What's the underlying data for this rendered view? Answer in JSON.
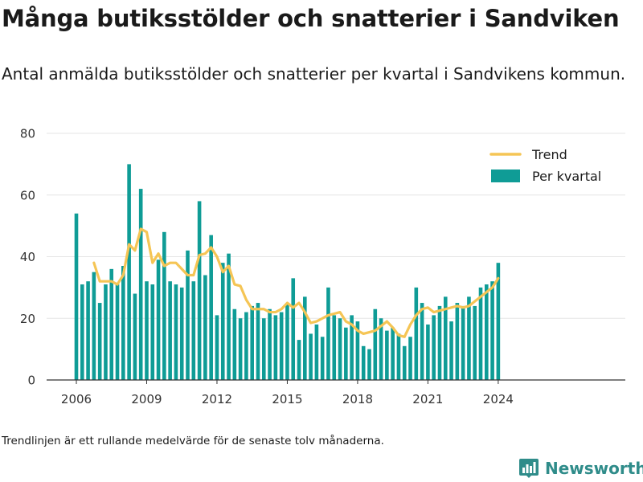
{
  "header": {
    "title": "Många butiksstölder och snatterier i Sandviken",
    "subtitle": "Antal anmälda butiksstölder och snatterier per kvartal i Sandvikens kommun."
  },
  "footer": {
    "note": "Trendlinjen är ett rullande medelvärde för de senaste tolv månaderna.",
    "brand": "Newsworthy",
    "brand_icon": "bar-chart-icon"
  },
  "colors": {
    "bar": "#0f9c96",
    "trend": "#f5c555",
    "axis": "#333333",
    "grid": "#e6e6e6",
    "brand": "#2f8c8a"
  },
  "chart_data": {
    "type": "bar",
    "xlabel": "",
    "ylabel": "",
    "ylim": [
      0,
      80
    ],
    "yticks": [
      0,
      20,
      40,
      60,
      80
    ],
    "xticks": [
      "2006",
      "2009",
      "2012",
      "2015",
      "2018",
      "2021",
      "2024"
    ],
    "grid": true,
    "legend_position": "top-right",
    "categories": [
      "2006 Q1",
      "2006 Q2",
      "2006 Q3",
      "2006 Q4",
      "2007 Q1",
      "2007 Q2",
      "2007 Q3",
      "2007 Q4",
      "2008 Q1",
      "2008 Q2",
      "2008 Q3",
      "2008 Q4",
      "2009 Q1",
      "2009 Q2",
      "2009 Q3",
      "2009 Q4",
      "2010 Q1",
      "2010 Q2",
      "2010 Q3",
      "2010 Q4",
      "2011 Q1",
      "2011 Q2",
      "2011 Q3",
      "2011 Q4",
      "2012 Q1",
      "2012 Q2",
      "2012 Q3",
      "2012 Q4",
      "2013 Q1",
      "2013 Q2",
      "2013 Q3",
      "2013 Q4",
      "2014 Q1",
      "2014 Q2",
      "2014 Q3",
      "2014 Q4",
      "2015 Q1",
      "2015 Q2",
      "2015 Q3",
      "2015 Q4",
      "2016 Q1",
      "2016 Q2",
      "2016 Q3",
      "2016 Q4",
      "2017 Q1",
      "2017 Q2",
      "2017 Q3",
      "2017 Q4",
      "2018 Q1",
      "2018 Q2",
      "2018 Q3",
      "2018 Q4",
      "2019 Q1",
      "2019 Q2",
      "2019 Q3",
      "2019 Q4",
      "2020 Q1",
      "2020 Q2",
      "2020 Q3",
      "2020 Q4",
      "2021 Q1",
      "2021 Q2",
      "2021 Q3",
      "2021 Q4",
      "2022 Q1",
      "2022 Q2",
      "2022 Q3",
      "2022 Q4",
      "2023 Q1",
      "2023 Q2",
      "2023 Q3",
      "2023 Q4",
      "2024 Q1"
    ],
    "series": [
      {
        "name": "Per kvartal",
        "type": "bar",
        "values": [
          54,
          31,
          32,
          35,
          25,
          31,
          36,
          31,
          37,
          70,
          28,
          62,
          32,
          31,
          39,
          48,
          32,
          31,
          30,
          42,
          32,
          58,
          34,
          47,
          21,
          38,
          41,
          23,
          20,
          22,
          24,
          25,
          20,
          23,
          21,
          22,
          25,
          33,
          13,
          27,
          15,
          18,
          14,
          30,
          21,
          20,
          17,
          21,
          19,
          11,
          10,
          23,
          20,
          16,
          17,
          15,
          11,
          14,
          30,
          25,
          18,
          21,
          24,
          27,
          19,
          25,
          24,
          27,
          24,
          30,
          31,
          32,
          38
        ]
      },
      {
        "name": "Trend",
        "type": "line",
        "values": [
          null,
          null,
          null,
          38,
          32,
          32,
          32,
          31,
          34,
          44,
          42,
          49,
          48,
          38,
          41,
          37,
          38,
          38,
          36,
          34,
          34,
          40.5,
          41,
          43,
          40,
          35,
          37,
          31,
          30.5,
          26,
          23,
          23,
          23,
          22,
          22,
          23,
          25,
          23.5,
          25,
          22,
          18.5,
          19,
          20,
          21,
          21.5,
          22,
          19,
          18,
          16,
          15,
          15.5,
          16,
          17.5,
          19,
          17,
          14.5,
          14,
          18,
          21,
          23,
          23.5,
          22,
          22.5,
          23,
          23.5,
          24,
          23.5,
          24,
          25.5,
          27,
          28.5,
          30,
          33
        ]
      }
    ]
  }
}
